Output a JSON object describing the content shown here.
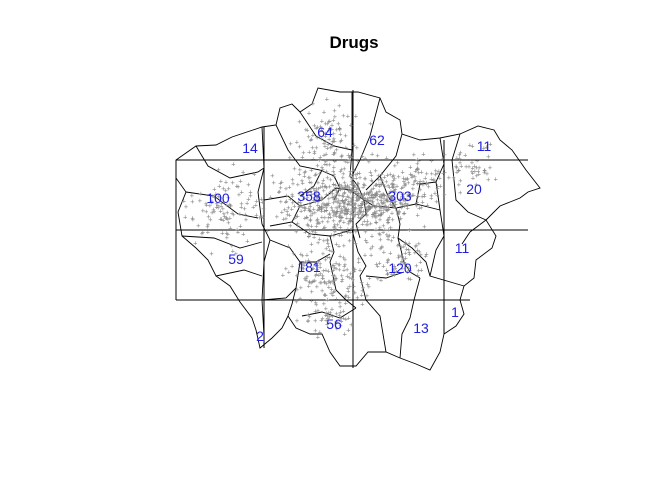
{
  "title": "Drugs",
  "colors": {
    "count_label": "#2020e0",
    "points": "#8a8a8a",
    "boundaries": "#000000"
  },
  "grid": {
    "x_lines": 4,
    "y_lines": 3
  },
  "cell_counts": [
    {
      "id": "r0c0",
      "label": "14"
    },
    {
      "id": "r0c1",
      "label": "64"
    },
    {
      "id": "r0c2",
      "label": "62"
    },
    {
      "id": "r0c3",
      "label": "11"
    },
    {
      "id": "r1c0",
      "label": "100"
    },
    {
      "id": "r1c1",
      "label": "358"
    },
    {
      "id": "r1c2",
      "label": "303"
    },
    {
      "id": "r1c3",
      "label": "20"
    },
    {
      "id": "r2c0",
      "label": "59"
    },
    {
      "id": "r2c1",
      "label": "181"
    },
    {
      "id": "r2c2",
      "label": "120"
    },
    {
      "id": "r2c3",
      "label": "11"
    },
    {
      "id": "r3c0",
      "label": "2"
    },
    {
      "id": "r3c1",
      "label": "56"
    },
    {
      "id": "r3c2",
      "label": "13"
    },
    {
      "id": "r3c3",
      "label": "1"
    }
  ]
}
